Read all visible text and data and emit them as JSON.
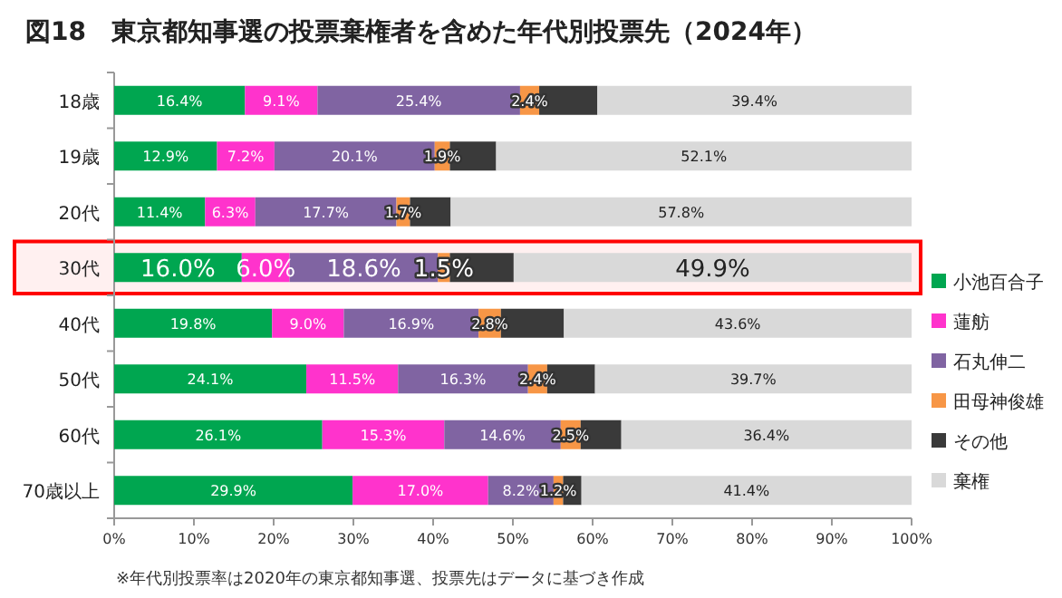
{
  "chart_data": {
    "type": "bar",
    "orientation": "horizontal",
    "stacked": true,
    "title": "図18　東京都知事選の投票棄権者を含めた年代別投票先（2024年）",
    "categories": [
      "18歳",
      "19歳",
      "20代",
      "30代",
      "40代",
      "50代",
      "60代",
      "70歳以上"
    ],
    "series": [
      {
        "name": "小池百合子",
        "color": "#00a650",
        "values": [
          16.4,
          12.9,
          11.4,
          16.0,
          19.8,
          24.1,
          26.1,
          29.9
        ],
        "value_labels": [
          "16.4%",
          "12.9%",
          "11.4%",
          "16.0%",
          "19.8%",
          "24.1%",
          "26.1%",
          "29.9%"
        ]
      },
      {
        "name": "蓮舫",
        "color": "#ff33cc",
        "values": [
          9.1,
          7.2,
          6.3,
          6.0,
          9.0,
          11.5,
          15.3,
          17.0
        ],
        "value_labels": [
          "9.1%",
          "7.2%",
          "6.3%",
          "6.0%",
          "9.0%",
          "11.5%",
          "15.3%",
          "17.0%"
        ]
      },
      {
        "name": "石丸伸二",
        "color": "#8064a2",
        "values": [
          25.4,
          20.1,
          17.7,
          18.6,
          16.9,
          16.3,
          14.6,
          8.2
        ],
        "value_labels": [
          "25.4%",
          "20.1%",
          "17.7%",
          "18.6%",
          "16.9%",
          "16.3%",
          "14.6%",
          "8.2%"
        ]
      },
      {
        "name": "田母神俊雄",
        "color": "#f79646",
        "values": [
          2.4,
          1.9,
          1.7,
          1.5,
          2.8,
          2.4,
          2.5,
          1.2
        ],
        "value_labels": [
          "2.4%",
          "1.9%",
          "1.7%",
          "1.5%",
          "2.8%",
          "2.4%",
          "2.5%",
          "1.2%"
        ]
      },
      {
        "name": "その他",
        "color": "#3a3a3a",
        "values": [
          7.3,
          5.8,
          5.1,
          8.0,
          7.9,
          6.0,
          5.1,
          2.3
        ]
      },
      {
        "name": "棄権",
        "color": "#d9d9d9",
        "values": [
          39.4,
          52.1,
          57.8,
          49.9,
          43.6,
          39.7,
          36.4,
          41.4
        ],
        "value_labels": [
          "39.4%",
          "52.1%",
          "57.8%",
          "49.9%",
          "43.6%",
          "39.7%",
          "36.4%",
          "41.4%"
        ]
      }
    ],
    "xlim": [
      0,
      100
    ],
    "xticks": [
      {
        "value": 0,
        "label": "0%"
      },
      {
        "value": 10,
        "label": "10%"
      },
      {
        "value": 20,
        "label": "20%"
      },
      {
        "value": 30,
        "label": "30%"
      },
      {
        "value": 40,
        "label": "40%"
      },
      {
        "value": 50,
        "label": "50%"
      },
      {
        "value": 60,
        "label": "60%"
      },
      {
        "value": 70,
        "label": "70%"
      },
      {
        "value": 80,
        "label": "80%"
      },
      {
        "value": 90,
        "label": "90%"
      },
      {
        "value": 100,
        "label": "100%"
      }
    ],
    "bands": [
      {
        "axis": "y",
        "from": "30代",
        "to": "30代",
        "color": "#ff0000"
      }
    ],
    "legend": "right",
    "grid": false,
    "annotations": [
      "※年代別投票率は2020年の東京都知事選、投票先はデータに基づき作成"
    ]
  }
}
